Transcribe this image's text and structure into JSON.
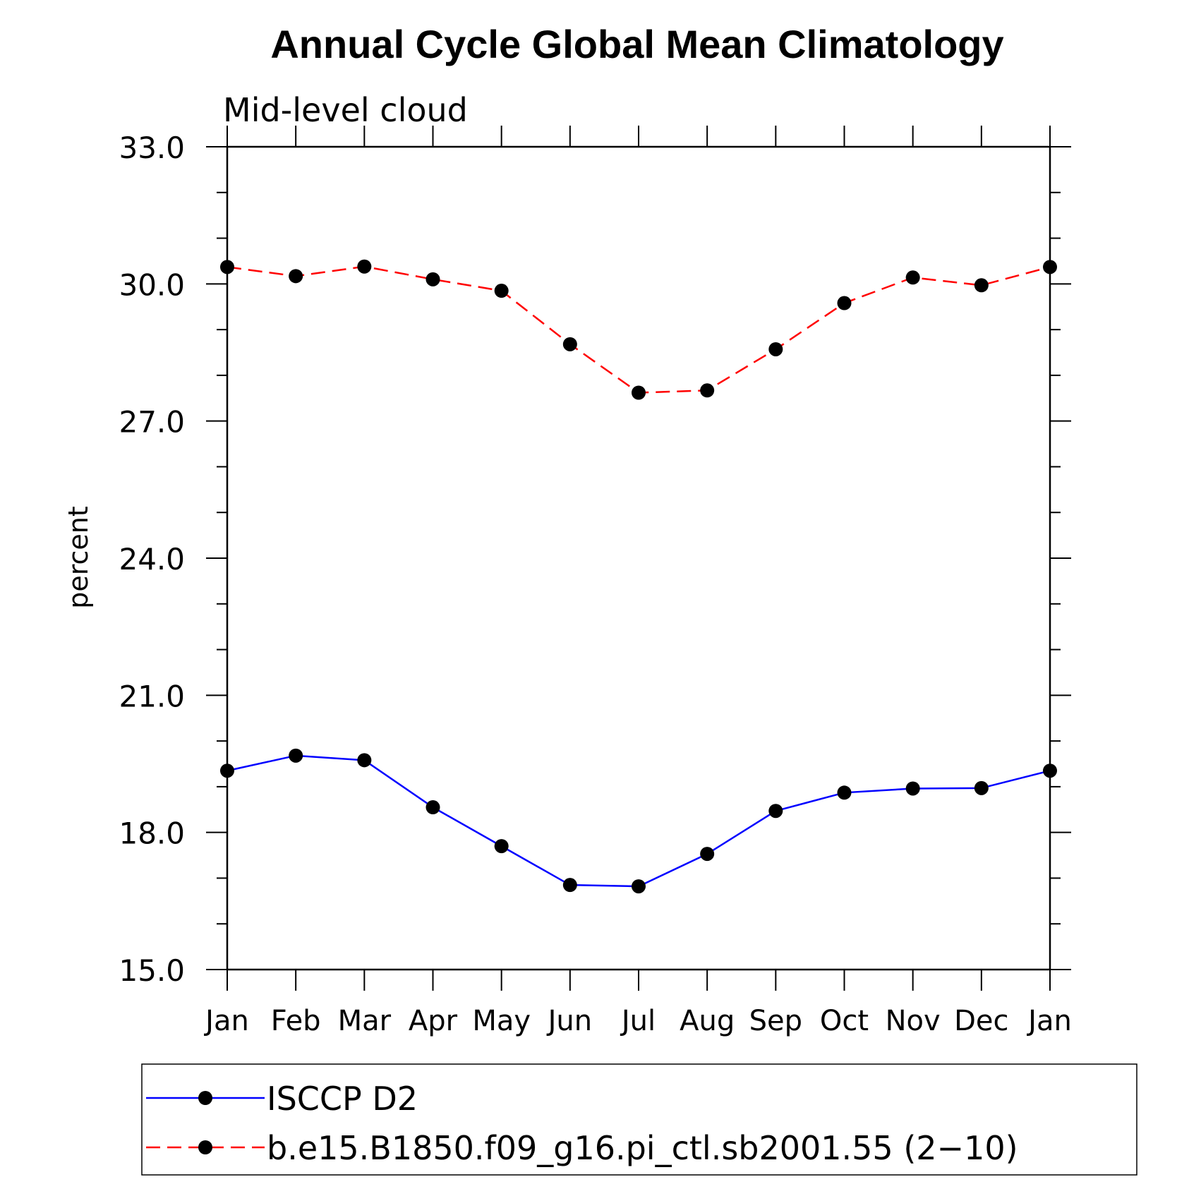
{
  "chart_data": {
    "type": "line",
    "title": "Annual Cycle Global Mean Climatology",
    "subtitle": "Mid-level cloud",
    "ylabel": "percent",
    "xlabel": "",
    "categories": [
      "Jan",
      "Feb",
      "Mar",
      "Apr",
      "May",
      "Jun",
      "Jul",
      "Aug",
      "Sep",
      "Oct",
      "Nov",
      "Dec",
      "Jan"
    ],
    "ylim": [
      15.0,
      33.0
    ],
    "yticks": [
      "15.0",
      "18.0",
      "21.0",
      "24.0",
      "27.0",
      "30.0",
      "33.0"
    ],
    "grid": false,
    "legend_position": "bottom",
    "series": [
      {
        "name": "ISCCP D2",
        "color": "#0000ff",
        "line_style": "solid",
        "marker": "filled-circle",
        "values": [
          19.35,
          19.68,
          19.58,
          18.55,
          17.7,
          16.85,
          16.82,
          17.53,
          18.47,
          18.87,
          18.96,
          18.97,
          19.35
        ]
      },
      {
        "name": "b.e15.B1850.f09_g16.pi_ctl.sb2001.55 (2−10)",
        "color": "#ff0000",
        "line_style": "dashed",
        "marker": "filled-circle",
        "values": [
          30.37,
          30.17,
          30.38,
          30.1,
          29.85,
          28.68,
          27.62,
          27.67,
          28.57,
          29.58,
          30.14,
          29.97,
          30.37
        ]
      }
    ]
  }
}
